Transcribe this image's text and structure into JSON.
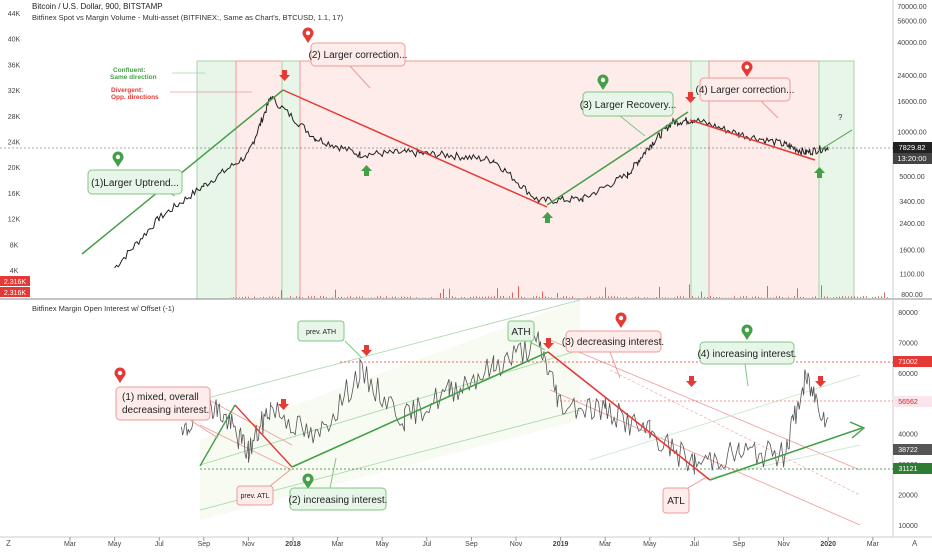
{
  "header": {
    "title": "Bitcoin / U.S. Dollar, 900, BITSTAMP",
    "indicator": "Bitfinex Spot vs Margin Volume - Multi-asset (BITFINEX:, Same as Chart's, BTCUSD, 1.1, 17)"
  },
  "lower_header": {
    "title": "Bitfinex Margin Open Interest w/ Offset (-1)"
  },
  "legend_notes": {
    "confluent": "Confluent:",
    "confluent_sub": "Same direction",
    "divergent": "Divergent:",
    "divergent_sub": "Opp. directions"
  },
  "annotations_upper": {
    "c1": "(1)Larger Uptrend...",
    "c2": "(2) Larger correction...",
    "c3": "(3) Larger Recovery...",
    "c4": "(4) Larger correction...",
    "question": "?"
  },
  "annotations_lower": {
    "c1a": "(1) mixed, overall",
    "c1b": "decreasing interest.",
    "c2": "(2) increasing interest.",
    "c3": "(3) decreasing interest.",
    "c4": "(4) increasing interest.",
    "ath": "ATH",
    "atl": "ATL",
    "prev_ath": "prev. ATH",
    "prev_atl": "prev. ATL"
  },
  "badges": {
    "left_top": "2.316K",
    "left_bottom": "2.316K",
    "price": "7829.82",
    "time": "13:20:00",
    "oi_71": "71002",
    "oi_56": "56562",
    "oi_38": "38722",
    "oi_31": "31121"
  },
  "x_axis": {
    "labels": [
      "Mar",
      "May",
      "Jul",
      "Sep",
      "Nov",
      "2018",
      "Mar",
      "May",
      "Jul",
      "Sep",
      "Nov",
      "2019",
      "Mar",
      "May",
      "Jul",
      "Sep",
      "Nov",
      "2020",
      "Mar"
    ]
  },
  "bottom_bar": {
    "left": "Z",
    "right": "A"
  },
  "colors": {
    "green": "#43a047",
    "red": "#e53935",
    "green_fill": "#e8f5e9",
    "red_fill": "#fdecea"
  },
  "chart_data": [
    {
      "type": "line",
      "title": "Bitcoin / U.S. Dollar, 900, BITSTAMP",
      "y_left_ticks": [
        "44K",
        "40K",
        "36K",
        "32K",
        "28K",
        "24K",
        "20K",
        "16K",
        "12K",
        "8K",
        "4K"
      ],
      "y_right_ticks": [
        "70000.00",
        "56000.00",
        "40000.00",
        "24000.00",
        "16000.00",
        "10000.00",
        "5000.00",
        "3400.00",
        "2400.00",
        "1600.00",
        "1100.00",
        "800.00"
      ],
      "y_right_log": true,
      "x": [
        "2017-05",
        "2017-07",
        "2017-09",
        "2017-11",
        "2017-12",
        "2018-02",
        "2018-04",
        "2018-06",
        "2018-08",
        "2018-10",
        "2018-12",
        "2019-02",
        "2019-04",
        "2019-05",
        "2019-06",
        "2019-07",
        "2019-09",
        "2019-11",
        "2019-12",
        "2020-01"
      ],
      "series": [
        {
          "values": [
            1200,
            2600,
            4300,
            7000,
            17000,
            9000,
            7000,
            7200,
            6900,
            6400,
            3400,
            3500,
            5100,
            8000,
            11500,
            12000,
            9600,
            8200,
            7200,
            7830
          ]
        }
      ]
    },
    {
      "type": "line",
      "title": "Bitfinex Margin Open Interest w/ Offset (-1)",
      "y_right_ticks": [
        "80000",
        "70000",
        "60000",
        "50000",
        "40000",
        "30000",
        "20000",
        "10000"
      ],
      "x": [
        "2017-08",
        "2017-09",
        "2017-10",
        "2017-11",
        "2017-12",
        "2018-02",
        "2018-04",
        "2018-06",
        "2018-08",
        "2018-10",
        "2018-12",
        "2019-01",
        "2019-03",
        "2019-05",
        "2019-07",
        "2019-09",
        "2019-11",
        "2019-12",
        "2020-01"
      ],
      "series": [
        {
          "values": [
            38000,
            52000,
            45000,
            34000,
            49000,
            38000,
            60000,
            45000,
            54000,
            62000,
            70000,
            50000,
            48000,
            40000,
            30000,
            34000,
            33000,
            58000,
            44000
          ]
        }
      ]
    }
  ]
}
